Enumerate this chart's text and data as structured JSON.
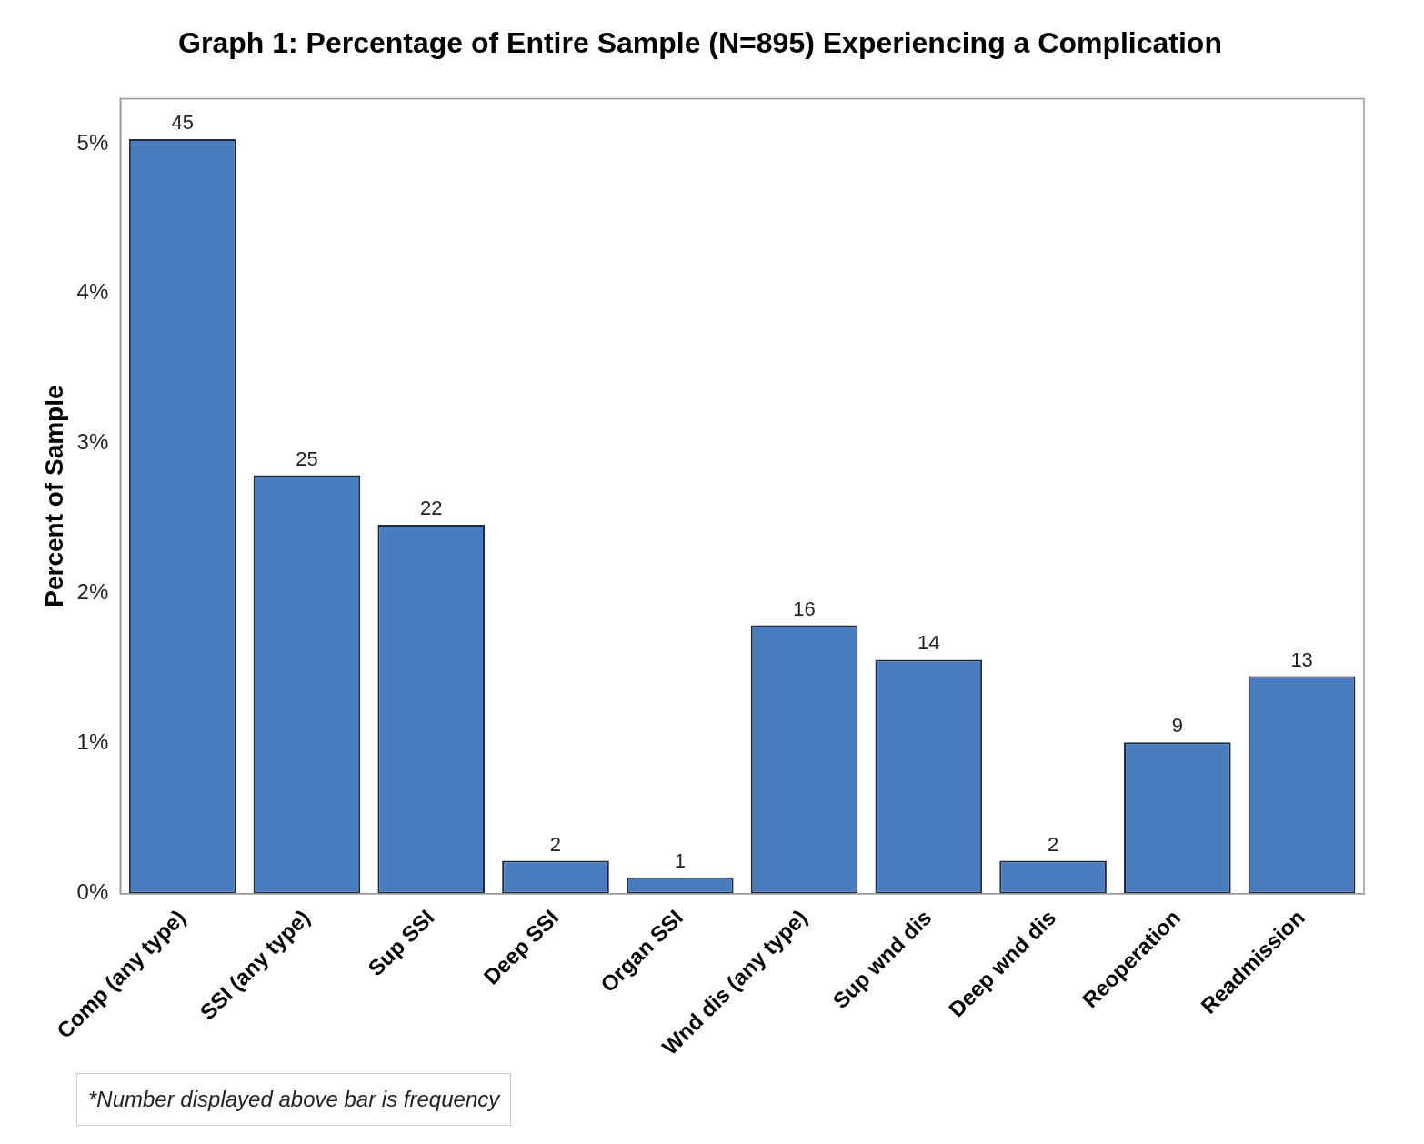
{
  "chart_data": {
    "type": "bar",
    "title": "Graph 1: Percentage of Entire Sample (N=895) Experiencing a Complication",
    "ylabel": "Percent of Sample",
    "categories": [
      "Comp (any type)",
      "SSI (any type)",
      "Sup SSI",
      "Deep SSI",
      "Organ SSI",
      "Wnd dis (any type)",
      "Sup wnd dis",
      "Deep wnd dis",
      "Reoperation",
      "Readmission"
    ],
    "values": [
      5.03,
      2.79,
      2.46,
      0.22,
      0.11,
      1.79,
      1.56,
      0.22,
      1.01,
      1.45
    ],
    "color": "#4a7dbf",
    "ylim": [
      0,
      5.3
    ],
    "yticks": [
      {
        "value": 0,
        "label": "0%"
      },
      {
        "value": 1,
        "label": "1%"
      },
      {
        "value": 2,
        "label": "2%"
      },
      {
        "value": 3,
        "label": "3%"
      },
      {
        "value": 4,
        "label": "4%"
      },
      {
        "value": 5,
        "label": "5%"
      }
    ],
    "grid": false,
    "legend": false,
    "annotations": [
      {
        "text": "45",
        "x": "Comp (any type)",
        "y": 5.03
      },
      {
        "text": "25",
        "x": "SSI (any type)",
        "y": 2.79
      },
      {
        "text": "22",
        "x": "Sup SSI",
        "y": 2.46
      },
      {
        "text": "2",
        "x": "Deep SSI",
        "y": 0.22
      },
      {
        "text": "1",
        "x": "Organ SSI",
        "y": 0.11
      },
      {
        "text": "16",
        "x": "Wnd dis (any type)",
        "y": 1.79
      },
      {
        "text": "14",
        "x": "Sup wnd dis",
        "y": 1.56
      },
      {
        "text": "2",
        "x": "Deep wnd dis",
        "y": 0.22
      },
      {
        "text": "9",
        "x": "Reoperation",
        "y": 1.01
      },
      {
        "text": "13",
        "x": "Readmission",
        "y": 1.45
      },
      "*Number displayed above bar is frequency"
    ]
  }
}
